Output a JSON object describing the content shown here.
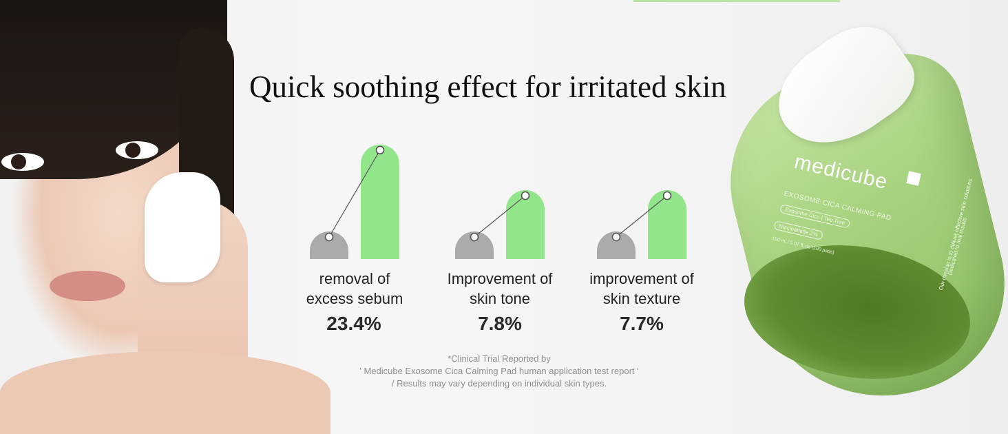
{
  "headline": "Quick soothing effect for irritated skin",
  "colors": {
    "before_bar": "#aaaaaa",
    "after_bar": "#93e58c",
    "connector": "#555555"
  },
  "chart_data": {
    "type": "bar",
    "title": "Quick soothing effect for irritated skin",
    "categories": [
      "removal of excess sebum",
      "Improvement of skin tone",
      "improvement of skin texture"
    ],
    "values": [
      23.4,
      7.8,
      7.7
    ],
    "unit": "%",
    "stats": [
      {
        "label_line1": "removal of",
        "label_line2": "excess sebum",
        "value": "23.4%"
      },
      {
        "label_line1": "Improvement of",
        "label_line2": "skin tone",
        "value": "7.8%"
      },
      {
        "label_line1": "improvement of",
        "label_line2": "skin texture",
        "value": "7.7%"
      }
    ]
  },
  "footnote": {
    "line1": "*Clinical Trial Reported by",
    "line2": "' Medicube Exosome Cica Calming Pad human application test report '",
    "line3": "/ Results may vary depending on individual skin types."
  },
  "product": {
    "brand": "medicube",
    "name": "EXOSOME CICA CALMING PAD",
    "ingredients": "Exosome Cica | Tea Tree",
    "niacinamide": "Niacinamide 2%",
    "volume": "150 ml / 5.07 fl. oz (100 pads)",
    "side_text_1": "Dedicated to real results",
    "side_text_2": "Our mission is to deliver effective skin solutions"
  }
}
